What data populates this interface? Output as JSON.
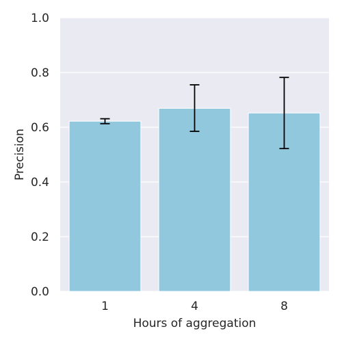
{
  "chart_data": {
    "type": "bar",
    "categories": [
      "1",
      "4",
      "8"
    ],
    "values": [
      0.622,
      0.669,
      0.652
    ],
    "error_low": [
      0.613,
      0.585,
      0.522
    ],
    "error_high": [
      0.631,
      0.755,
      0.782
    ],
    "xlabel": "Hours of aggregation",
    "ylabel": "Precision",
    "ylim": [
      0,
      1.0
    ],
    "yticks": [
      0.0,
      0.2,
      0.4,
      0.6,
      0.8,
      1.0
    ],
    "ytick_labels": [
      "0.0",
      "0.2",
      "0.4",
      "0.6",
      "0.8",
      "1.0"
    ],
    "grid": true,
    "colors": {
      "bar": "#92c8de",
      "background": "#eaeaf2",
      "grid": "#ffffff",
      "error_bar": "#000000"
    }
  }
}
